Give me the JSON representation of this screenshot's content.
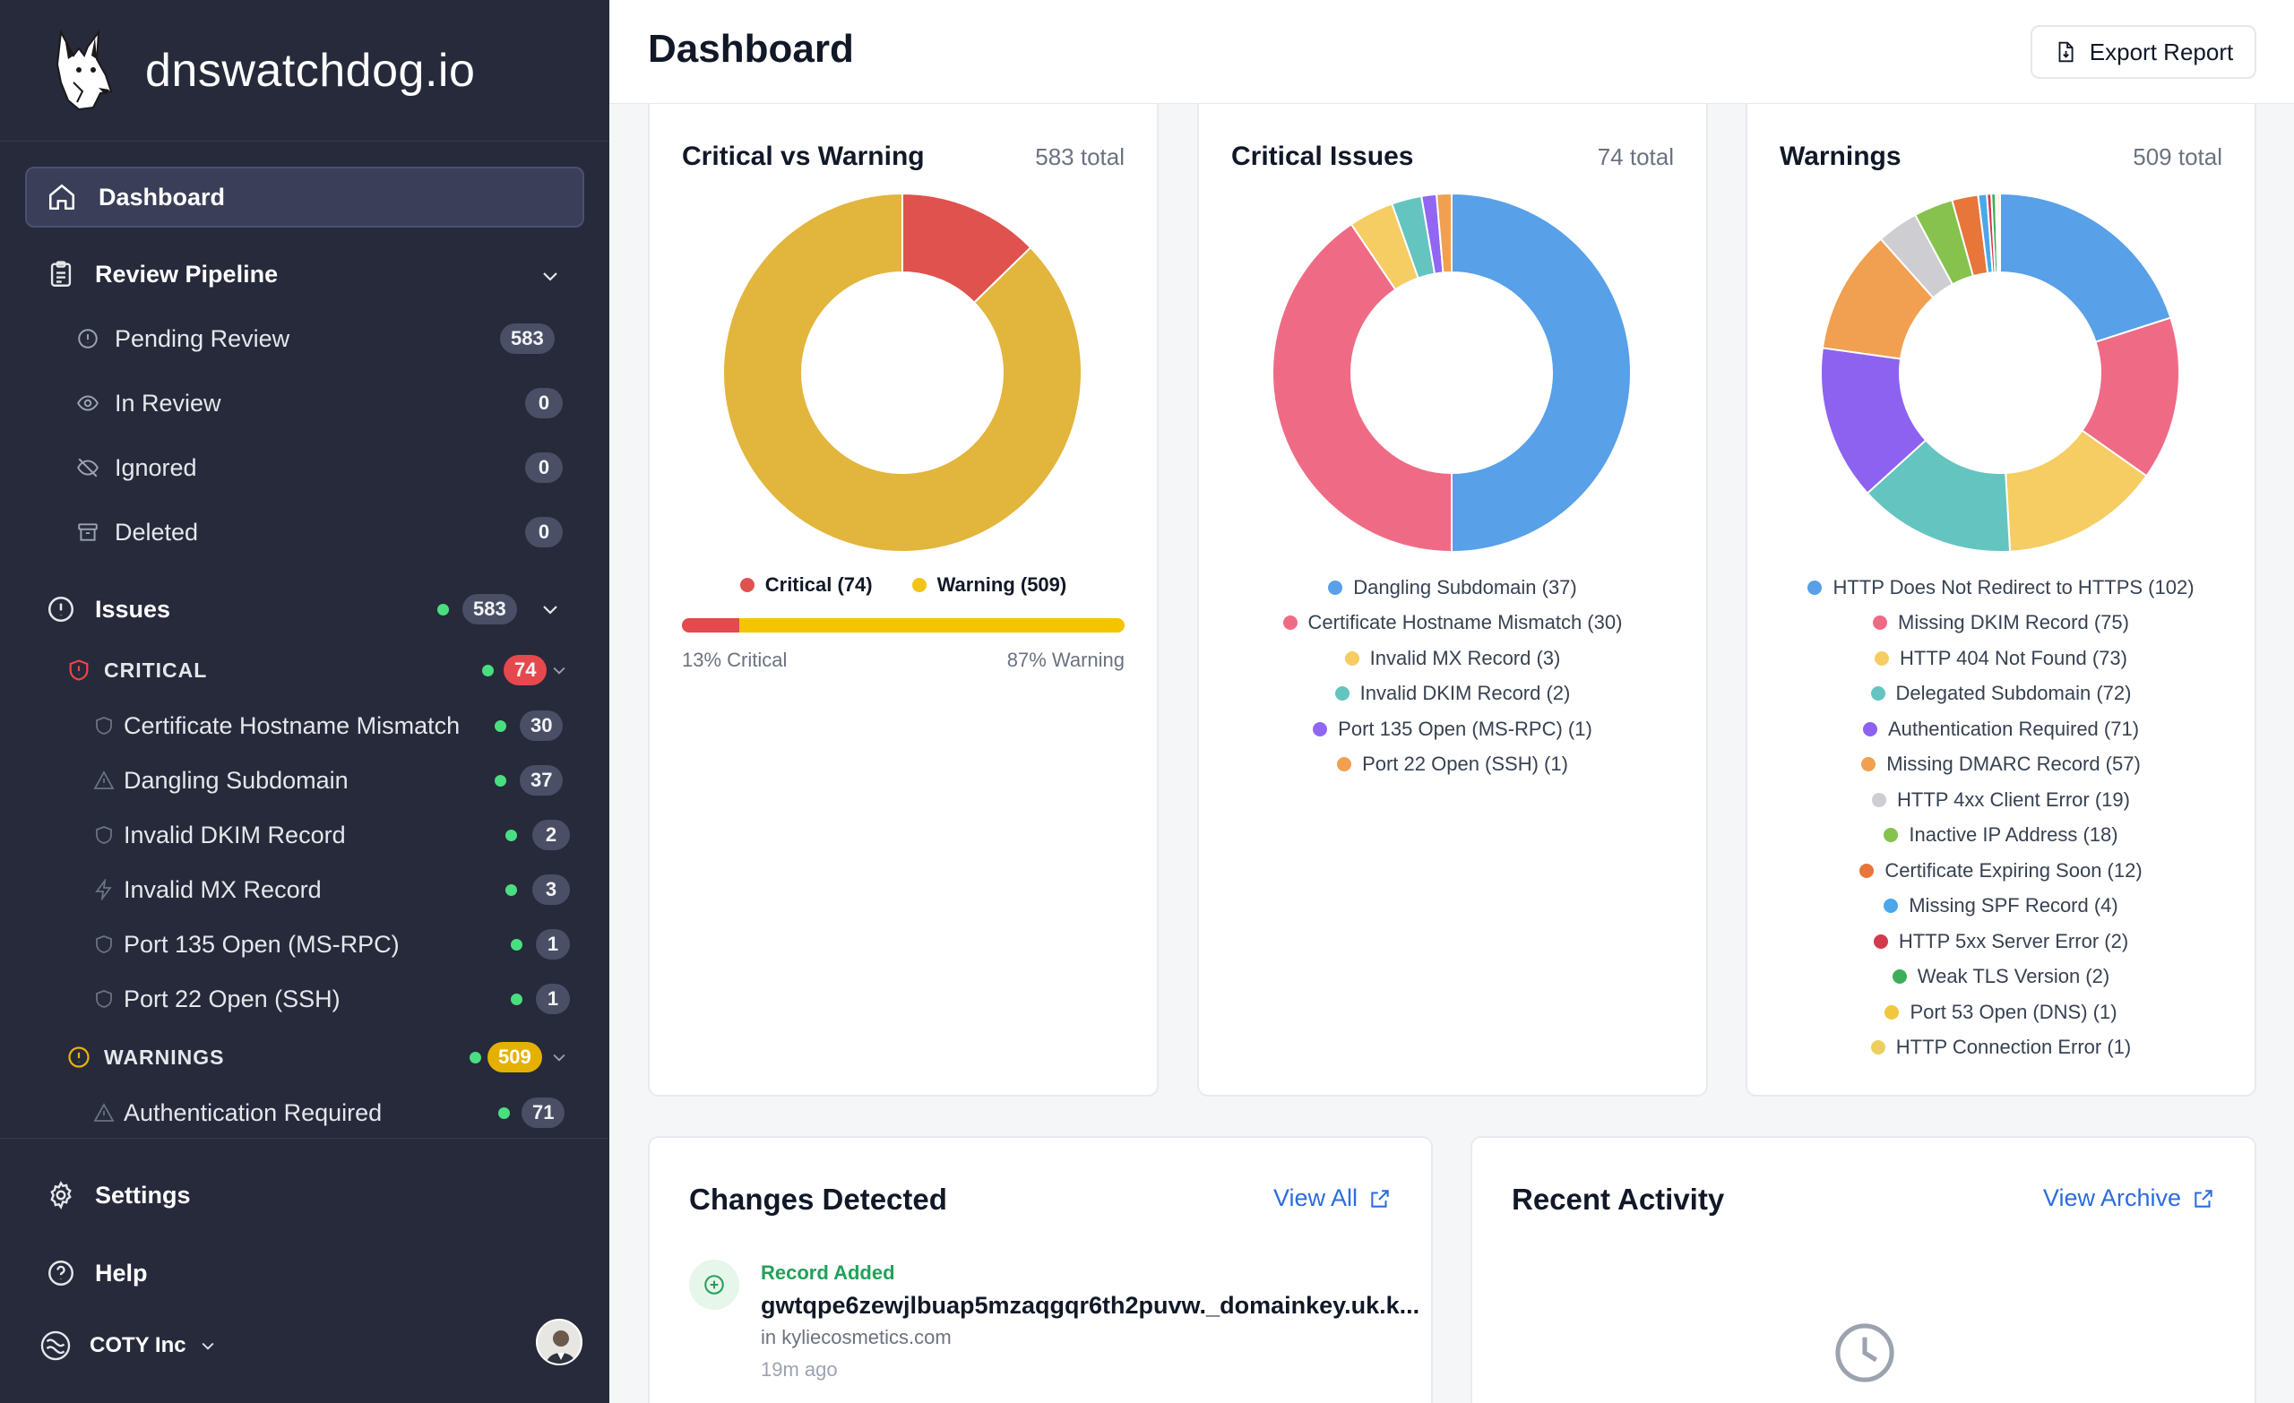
{
  "brand": {
    "name": "dnswatchdog.io"
  },
  "header": {
    "title": "Dashboard",
    "export_label": "Export Report"
  },
  "sidebar": {
    "dashboard": "Dashboard",
    "review_pipeline": {
      "label": "Review Pipeline",
      "items": [
        {
          "label": "Pending Review",
          "count": "583",
          "icon": "alert-circle-icon"
        },
        {
          "label": "In Review",
          "count": "0",
          "icon": "eye-icon"
        },
        {
          "label": "Ignored",
          "count": "0",
          "icon": "eye-off-icon"
        },
        {
          "label": "Deleted",
          "count": "0",
          "icon": "archive-icon"
        }
      ]
    },
    "issues": {
      "label": "Issues",
      "count": "583",
      "critical": {
        "label": "CRITICAL",
        "count": "74",
        "items": [
          {
            "label": "Certificate Hostname Mismatch",
            "count": "30"
          },
          {
            "label": "Dangling Subdomain",
            "count": "37"
          },
          {
            "label": "Invalid DKIM Record",
            "count": "2"
          },
          {
            "label": "Invalid MX Record",
            "count": "3"
          },
          {
            "label": "Port 135 Open (MS-RPC)",
            "count": "1"
          },
          {
            "label": "Port 22 Open (SSH)",
            "count": "1"
          }
        ]
      },
      "warnings": {
        "label": "WARNINGS",
        "count": "509",
        "items": [
          {
            "label": "Authentication Required",
            "count": "71"
          }
        ]
      }
    },
    "settings": "Settings",
    "help": "Help",
    "org": "COTY Inc"
  },
  "cards": {
    "critical_vs_warning": {
      "title": "Critical vs Warning",
      "total": "583 total",
      "legend_critical": "Critical (74)",
      "legend_warning": "Warning (509)",
      "critical_pct_label": "13% Critical",
      "warning_pct_label": "87% Warning",
      "critical_fraction": 0.13
    },
    "critical_issues": {
      "title": "Critical Issues",
      "total": "74 total"
    },
    "warnings": {
      "title": "Warnings",
      "total": "509 total"
    },
    "changes": {
      "title": "Changes Detected",
      "view_all": "View All",
      "item": {
        "type": "Record Added",
        "record": "gwtqpe6zewjlbuap5mzaqgqr6th2puvw._domainkey.uk.k...",
        "domain": "in kyliecosmetics.com",
        "time": "19m ago"
      }
    },
    "activity": {
      "title": "Recent Activity",
      "view_archive": "View Archive"
    }
  },
  "colors": {
    "critical": "#e0524e",
    "warning": "#e2b53d",
    "accent": "#2b6cde"
  },
  "chart_data": [
    {
      "type": "pie",
      "title": "Critical vs Warning",
      "categories": [
        "Critical",
        "Warning"
      ],
      "values": [
        74,
        509
      ],
      "colors": [
        "#e0524e",
        "#e2b53d"
      ]
    },
    {
      "type": "pie",
      "title": "Critical Issues",
      "categories": [
        "Dangling Subdomain",
        "Certificate Hostname Mismatch",
        "Invalid MX Record",
        "Invalid DKIM Record",
        "Port 135 Open (MS-RPC)",
        "Port 22 Open (SSH)"
      ],
      "labels": [
        "Dangling Subdomain (37)",
        "Certificate Hostname Mismatch (30)",
        "Invalid MX Record (3)",
        "Invalid DKIM Record (2)",
        "Port 135 Open (MS-RPC) (1)",
        "Port 22 Open (SSH) (1)"
      ],
      "values": [
        37,
        30,
        3,
        2,
        1,
        1
      ],
      "colors": [
        "#58a0e8",
        "#ef6b85",
        "#f6cd63",
        "#64c4c0",
        "#9166f2",
        "#f0a050"
      ]
    },
    {
      "type": "pie",
      "title": "Warnings",
      "categories": [
        "HTTP Does Not Redirect to HTTPS",
        "Missing DKIM Record",
        "HTTP 404 Not Found",
        "Delegated Subdomain",
        "Authentication Required",
        "Missing DMARC Record",
        "HTTP 4xx Client Error",
        "Inactive IP Address",
        "Certificate Expiring Soon",
        "Missing SPF Record",
        "HTTP 5xx Server Error",
        "Weak TLS Version",
        "Port 53 Open (DNS)",
        "HTTP Connection Error"
      ],
      "labels": [
        "HTTP Does Not Redirect to HTTPS (102)",
        "Missing DKIM Record (75)",
        "HTTP 404 Not Found (73)",
        "Delegated Subdomain (72)",
        "Authentication Required (71)",
        "Missing DMARC Record (57)",
        "HTTP 4xx Client Error (19)",
        "Inactive IP Address (18)",
        "Certificate Expiring Soon (12)",
        "Missing SPF Record (4)",
        "HTTP 5xx Server Error (2)",
        "Weak TLS Version (2)",
        "Port 53 Open (DNS) (1)",
        "HTTP Connection Error (1)"
      ],
      "values": [
        102,
        75,
        73,
        72,
        71,
        57,
        19,
        18,
        12,
        4,
        2,
        2,
        1,
        1
      ],
      "colors": [
        "#58a0e8",
        "#ef6b85",
        "#f6cd63",
        "#64c4c0",
        "#8e62f0",
        "#f0a050",
        "#cdcdd2",
        "#86c24d",
        "#e8753a",
        "#4aa7ea",
        "#d23a4d",
        "#3fae5b",
        "#f3c640",
        "#ecd05e"
      ]
    }
  ]
}
